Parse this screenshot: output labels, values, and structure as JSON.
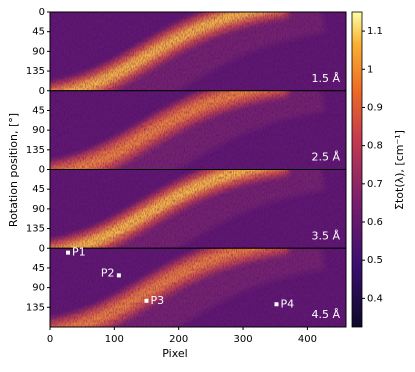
{
  "chart_data": {
    "type": "heatmap",
    "xlabel": "Pixel",
    "ylabel": "Rotation position, [°]",
    "xlim": [
      0,
      460
    ],
    "xticks": [
      0,
      100,
      200,
      300,
      400
    ],
    "ylim": [
      180,
      0
    ],
    "yticks": [
      0,
      45,
      90,
      135
    ],
    "panels": [
      {
        "label": "1.5 Å",
        "intensity": 1.0
      },
      {
        "label": "2.5 Å",
        "intensity": 0.85
      },
      {
        "label": "3.5 Å",
        "intensity": 1.1
      },
      {
        "label": "4.5 Å",
        "intensity": 0.75
      }
    ],
    "points": {
      "panel": 3,
      "names": [
        "P1",
        "P2",
        "P3",
        "P4"
      ],
      "x": [
        28,
        107,
        150,
        352
      ],
      "y": [
        10,
        62,
        120,
        128
      ]
    },
    "colorbar": {
      "label": "Σtot(λ), [cm⁻¹]",
      "clim": [
        0.325,
        1.15
      ],
      "ticks": [
        0.4,
        0.5,
        0.6,
        0.7,
        0.8,
        0.9,
        1.0,
        1.1
      ]
    }
  }
}
